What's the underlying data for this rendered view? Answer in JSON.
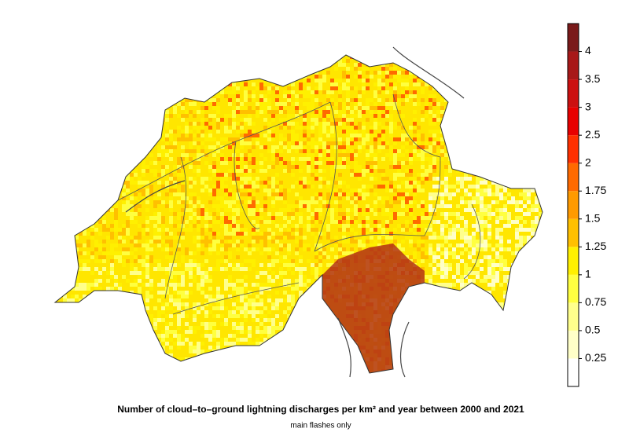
{
  "map": {
    "title": "Number of cloud–to–ground lightning discharges per km² and year between 2000 and 2021",
    "subtitle": "main flashes only",
    "legend": {
      "ticks": [
        0.25,
        0.5,
        0.75,
        1,
        1.25,
        1.5,
        1.75,
        2,
        2.5,
        3,
        3.5,
        4
      ],
      "colors": [
        "#ffffff",
        "#ffffc8",
        "#ffff8c",
        "#ffff40",
        "#fff000",
        "#ffc000",
        "#ff9a00",
        "#ff6a00",
        "#ff3000",
        "#e80000",
        "#cc1010",
        "#a81818",
        "#7a1a1a"
      ]
    }
  }
}
